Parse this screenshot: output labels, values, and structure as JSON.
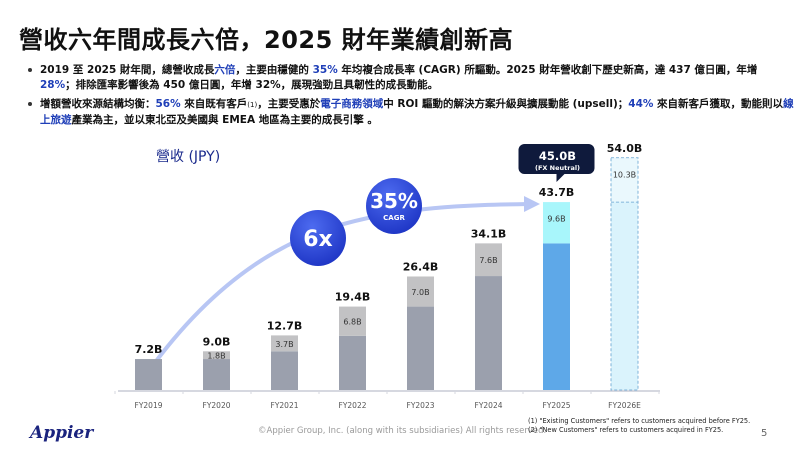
{
  "header": {
    "title": "營收六年間成長六倍，2025 財年業績創新高"
  },
  "bullets": [
    {
      "parts": [
        {
          "text": "2019 至 2025 財年間，總營收成長",
          "hl": false
        },
        {
          "text": "六倍",
          "hl": true
        },
        {
          "text": "，主要由穩健的 ",
          "hl": false
        },
        {
          "text": "35%",
          "hl": true
        },
        {
          "text": " 年均複合成長率 (CAGR) 所驅動。2025 財年營收創下歷史新高，達 437 億日圓，年增 ",
          "hl": false
        },
        {
          "text": "28%",
          "hl": true
        },
        {
          "text": "；排除匯率影響後為 450 億日圓，年增 32%，展現強勁且具韌性的成長動能。",
          "hl": false
        }
      ]
    },
    {
      "parts": [
        {
          "text": "增額營收來源結構均衡：",
          "hl": false
        },
        {
          "text": "56%",
          "hl": true
        },
        {
          "text": " 來自既有客戶",
          "hl": false
        },
        {
          "text": "(1)",
          "hl": false,
          "sup": true
        },
        {
          "text": "，主要受惠於",
          "hl": false
        },
        {
          "text": "電子商務領域",
          "hl": true
        },
        {
          "text": "中 ROI 驅動的解決方案升級與擴展動能 (upsell)；",
          "hl": false
        },
        {
          "text": "44%",
          "hl": true
        },
        {
          "text": " 來自新客戶獲取，動能則以",
          "hl": false
        },
        {
          "text": "線上旅遊",
          "hl": true
        },
        {
          "text": "產業為主，並以東北亞及美國與 EMEA 地區為主要的成長引擎 。",
          "hl": false
        }
      ]
    }
  ],
  "chart_data": {
    "type": "bar",
    "title": "營收 (JPY)",
    "xlabel": "",
    "ylabel": "",
    "unit": "B JPY",
    "ylim": [
      0,
      54
    ],
    "grid": false,
    "categories": [
      "FY2019",
      "FY2020",
      "FY2021",
      "FY2022",
      "FY2023",
      "FY2024",
      "FY2025",
      "FY2026E"
    ],
    "totals": [
      7.2,
      9.0,
      12.7,
      19.4,
      26.4,
      34.1,
      43.7,
      54.0
    ],
    "total_labels": [
      "7.2B",
      "9.0B",
      "12.7B",
      "19.4B",
      "26.4B",
      "34.1B",
      "43.7B",
      "54.0B"
    ],
    "series": [
      {
        "name": "base",
        "values": [
          7.2,
          7.2,
          9.0,
          12.6,
          19.4,
          26.5,
          34.1,
          43.7
        ]
      },
      {
        "name": "increment",
        "values": [
          0,
          1.8,
          3.7,
          6.8,
          7.0,
          7.6,
          9.6,
          10.3
        ],
        "labels": [
          "",
          "1.8B",
          "3.7B",
          "6.8B",
          "7.0B",
          "7.6B",
          "9.6B",
          "10.3B"
        ]
      }
    ],
    "colors": {
      "base": "#9ba0ad",
      "increment": "#c2c2c4",
      "fy2025_base": "#5ea8e8",
      "fy2025_increment": "#a8f6fb",
      "estimate_fill": "#daf3fc",
      "estimate_border": "#7fb3d9",
      "arrow": "#b8c6f4",
      "badge": "#2b46d6",
      "callout": "#0f1a3c"
    },
    "callout": {
      "value": "45.0B",
      "note": "(FX Neutral)",
      "category": "FY2025"
    },
    "badges": [
      {
        "big": "6x",
        "small": ""
      },
      {
        "big": "35%",
        "small": "CAGR"
      }
    ]
  },
  "footer": {
    "logo": "Appier",
    "copyright": "©Appier Group, Inc. (along with its subsidiaries) All rights reserved.",
    "notes": [
      "(1) \"Existing Customers\" refers to customers acquired before FY25.",
      "(2) \"New Customers\" refers to customers acquired in FY25."
    ],
    "page_number": "5"
  }
}
